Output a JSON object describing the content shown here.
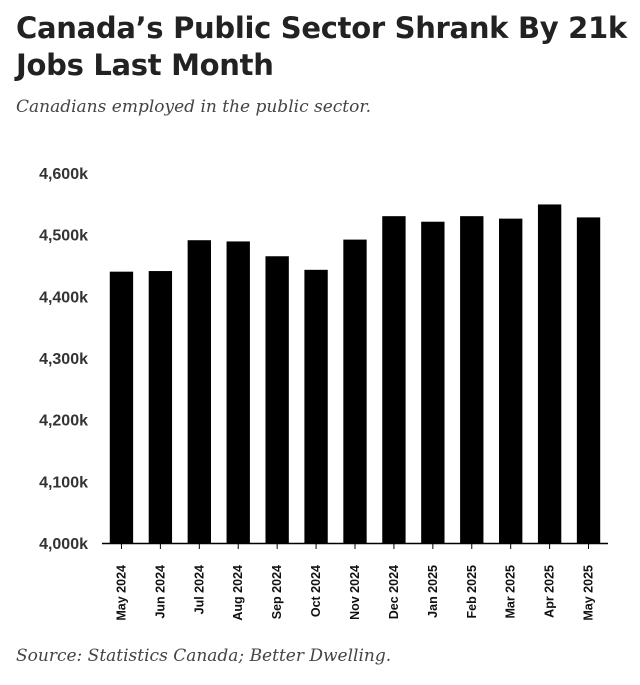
{
  "header": {
    "title": "Canada’s Public Sector Shrank By 21k Jobs Last Month",
    "subtitle": "Canadians employed in the public sector."
  },
  "footer": {
    "source": "Source: Statistics Canada; Better Dwelling."
  },
  "colors": {
    "bar": "#000000",
    "axis": "#000000",
    "title": "#222222",
    "subtitle": "#444444"
  },
  "chart_data": {
    "type": "bar",
    "categories": [
      "May 2024",
      "Jun 2024",
      "Jul 2024",
      "Aug 2024",
      "Sep 2024",
      "Oct 2024",
      "Nov 2024",
      "Dec 2024",
      "Jan 2025",
      "Feb 2025",
      "Mar 2025",
      "Apr 2025",
      "May 2025"
    ],
    "values": [
      4440,
      4441,
      4491,
      4489,
      4465,
      4443,
      4492,
      4530,
      4521,
      4530,
      4526,
      4549,
      4528
    ],
    "value_unit": "thousands",
    "ylim": [
      4000,
      4600
    ],
    "yticks": [
      4000,
      4100,
      4200,
      4300,
      4400,
      4500,
      4600
    ],
    "ytick_labels": [
      "4,000k",
      "4,100k",
      "4,200k",
      "4,300k",
      "4,400k",
      "4,500k",
      "4,600k"
    ],
    "xlabel": "",
    "ylabel": "",
    "grid": false,
    "legend": "none"
  }
}
